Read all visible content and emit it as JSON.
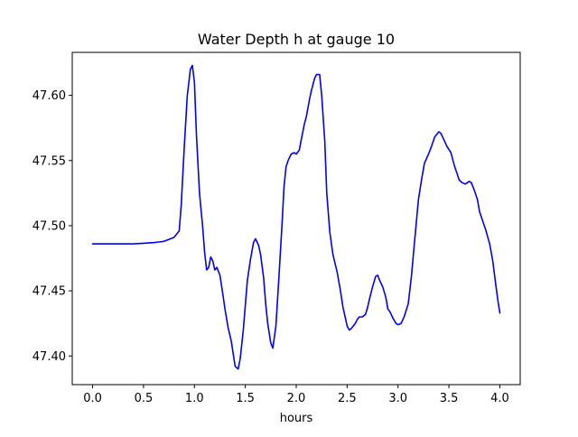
{
  "chart_data": {
    "type": "line",
    "title": "Water Depth h at gauge 10",
    "xlabel": "hours",
    "ylabel": "",
    "xlim": [
      -0.2,
      4.2
    ],
    "ylim": [
      47.378,
      47.633
    ],
    "xticks": [
      0.0,
      0.5,
      1.0,
      1.5,
      2.0,
      2.5,
      3.0,
      3.5,
      4.0
    ],
    "xtick_labels": [
      "0.0",
      "0.5",
      "1.0",
      "1.5",
      "2.0",
      "2.5",
      "3.0",
      "3.5",
      "4.0"
    ],
    "yticks": [
      47.4,
      47.45,
      47.5,
      47.55,
      47.6
    ],
    "ytick_labels": [
      "47.40",
      "47.45",
      "47.50",
      "47.55",
      "47.60"
    ],
    "grid": false,
    "series": [
      {
        "color": "#0000ff",
        "x": [
          0.0,
          0.1,
          0.2,
          0.3,
          0.4,
          0.5,
          0.6,
          0.65,
          0.7,
          0.75,
          0.8,
          0.85,
          0.87,
          0.9,
          0.93,
          0.96,
          0.98,
          1.0,
          1.02,
          1.05,
          1.08,
          1.1,
          1.12,
          1.14,
          1.16,
          1.18,
          1.2,
          1.22,
          1.25,
          1.28,
          1.3,
          1.33,
          1.36,
          1.4,
          1.43,
          1.45,
          1.48,
          1.52,
          1.55,
          1.58,
          1.6,
          1.63,
          1.65,
          1.68,
          1.7,
          1.72,
          1.75,
          1.77,
          1.8,
          1.83,
          1.86,
          1.88,
          1.9,
          1.92,
          1.95,
          1.98,
          2.0,
          2.03,
          2.05,
          2.08,
          2.1,
          2.13,
          2.15,
          2.18,
          2.2,
          2.23,
          2.25,
          2.28,
          2.3,
          2.33,
          2.36,
          2.4,
          2.43,
          2.46,
          2.5,
          2.52,
          2.54,
          2.56,
          2.58,
          2.6,
          2.62,
          2.65,
          2.68,
          2.7,
          2.72,
          2.75,
          2.78,
          2.8,
          2.82,
          2.85,
          2.88,
          2.9,
          2.92,
          2.95,
          2.98,
          3.0,
          3.03,
          3.06,
          3.1,
          3.13,
          3.16,
          3.2,
          3.23,
          3.26,
          3.3,
          3.33,
          3.36,
          3.4,
          3.42,
          3.45,
          3.48,
          3.52,
          3.55,
          3.58,
          3.6,
          3.63,
          3.66,
          3.7,
          3.72,
          3.75,
          3.78,
          3.8,
          3.83,
          3.86,
          3.9,
          3.93,
          3.96,
          3.98,
          4.0
        ],
        "y": [
          47.486,
          47.486,
          47.486,
          47.486,
          47.486,
          47.4865,
          47.487,
          47.4875,
          47.488,
          47.4895,
          47.491,
          47.496,
          47.515,
          47.56,
          47.6,
          47.62,
          47.623,
          47.61,
          47.57,
          47.525,
          47.5,
          47.48,
          47.466,
          47.468,
          47.476,
          47.473,
          47.466,
          47.468,
          47.462,
          47.447,
          47.436,
          47.422,
          47.412,
          47.392,
          47.39,
          47.398,
          47.42,
          47.458,
          47.474,
          47.487,
          47.49,
          47.485,
          47.478,
          47.46,
          47.44,
          47.425,
          47.41,
          47.406,
          47.423,
          47.46,
          47.5,
          47.53,
          47.545,
          47.55,
          47.555,
          47.556,
          47.555,
          47.558,
          47.566,
          47.578,
          47.584,
          47.597,
          47.604,
          47.613,
          47.616,
          47.616,
          47.6,
          47.565,
          47.525,
          47.495,
          47.478,
          47.465,
          47.452,
          47.437,
          47.423,
          47.42,
          47.421,
          47.423,
          47.425,
          47.428,
          47.43,
          47.43,
          47.432,
          47.437,
          47.444,
          47.453,
          47.461,
          47.462,
          47.458,
          47.453,
          47.445,
          47.436,
          47.434,
          47.429,
          47.425,
          47.424,
          47.425,
          47.43,
          47.44,
          47.46,
          47.486,
          47.52,
          47.535,
          47.548,
          47.555,
          47.561,
          47.568,
          47.572,
          47.571,
          47.566,
          47.561,
          47.556,
          47.547,
          47.54,
          47.535,
          47.533,
          47.532,
          47.534,
          47.533,
          47.527,
          47.52,
          47.511,
          47.504,
          47.497,
          47.486,
          47.473,
          47.455,
          47.443,
          47.433
        ]
      }
    ]
  }
}
